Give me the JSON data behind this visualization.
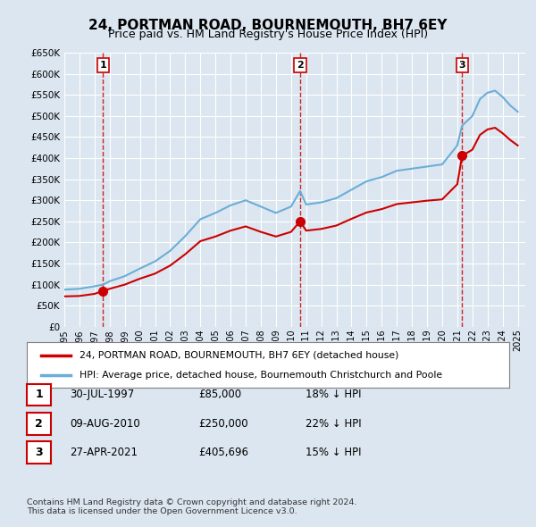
{
  "title": "24, PORTMAN ROAD, BOURNEMOUTH, BH7 6EY",
  "subtitle": "Price paid vs. HM Land Registry's House Price Index (HPI)",
  "ylabel_ticks": [
    "£0",
    "£50K",
    "£100K",
    "£150K",
    "£200K",
    "£250K",
    "£300K",
    "£350K",
    "£400K",
    "£450K",
    "£500K",
    "£550K",
    "£600K",
    "£650K"
  ],
  "ytick_values": [
    0,
    50000,
    100000,
    150000,
    200000,
    250000,
    300000,
    350000,
    400000,
    450000,
    500000,
    550000,
    600000,
    650000
  ],
  "xmin": 1995.0,
  "xmax": 2025.5,
  "ymin": 0,
  "ymax": 650000,
  "background_color": "#dce6f0",
  "plot_bg_color": "#dce6f0",
  "grid_color": "#ffffff",
  "sale_color": "#cc0000",
  "hpi_color": "#6baed6",
  "sale_marker_color": "#cc0000",
  "dashed_line_color": "#cc0000",
  "transactions": [
    {
      "date": 1997.57,
      "price": 85000,
      "label": "1"
    },
    {
      "date": 2010.6,
      "price": 250000,
      "label": "2"
    },
    {
      "date": 2021.32,
      "price": 405696,
      "label": "3"
    }
  ],
  "legend_entries": [
    "24, PORTMAN ROAD, BOURNEMOUTH, BH7 6EY (detached house)",
    "HPI: Average price, detached house, Bournemouth Christchurch and Poole"
  ],
  "table_rows": [
    {
      "num": "1",
      "date": "30-JUL-1997",
      "price": "£85,000",
      "hpi": "18% ↓ HPI"
    },
    {
      "num": "2",
      "date": "09-AUG-2010",
      "price": "£250,000",
      "hpi": "22% ↓ HPI"
    },
    {
      "num": "3",
      "date": "27-APR-2021",
      "price": "£405,696",
      "hpi": "15% ↓ HPI"
    }
  ],
  "footer": "Contains HM Land Registry data © Crown copyright and database right 2024.\nThis data is licensed under the Open Government Licence v3.0."
}
